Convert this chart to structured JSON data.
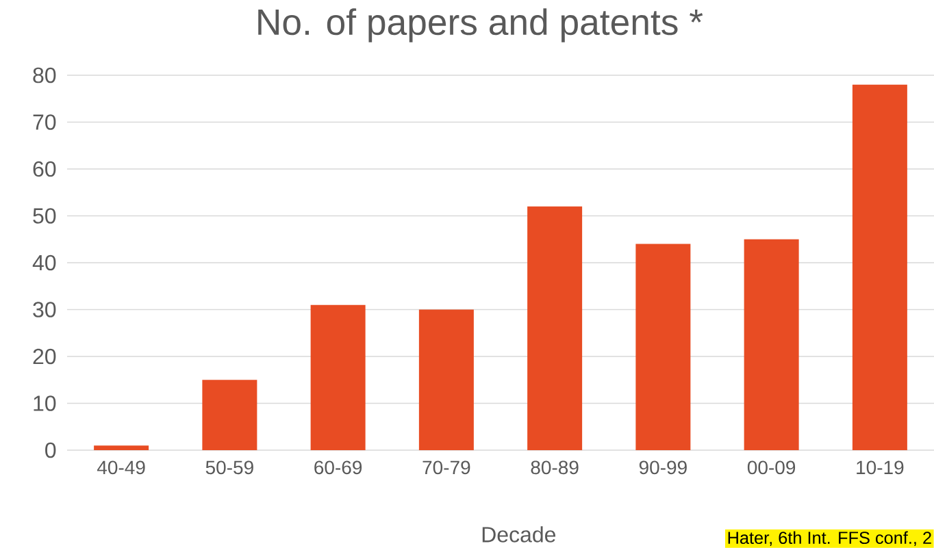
{
  "chart_data": {
    "type": "bar",
    "title": "No. of papers and patents *",
    "xlabel": "Decade",
    "categories": [
      "40-49",
      "50-59",
      "60-69",
      "70-79",
      "80-89",
      "90-99",
      "00-09",
      "10-19"
    ],
    "values": [
      1,
      15,
      31,
      30,
      52,
      44,
      45,
      78
    ],
    "color": "#e84c23",
    "ylim": [
      0,
      80
    ],
    "yticks": [
      0,
      10,
      20,
      30,
      40,
      50,
      60,
      70,
      80
    ],
    "grid": "y",
    "annotations": [
      "Hater, 6th Int. FFS conf., 2"
    ]
  }
}
